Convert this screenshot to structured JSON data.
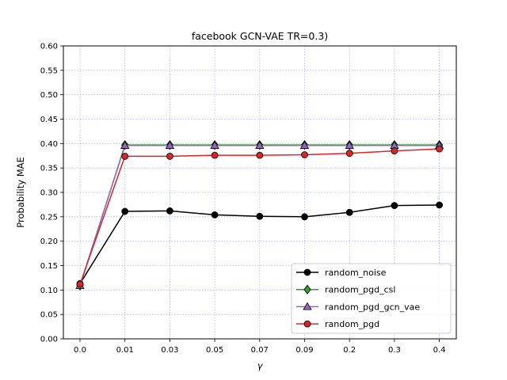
{
  "chart_data": {
    "type": "line",
    "title": "facebook GCN-VAE TR=0.3)",
    "xlabel": "γ",
    "ylabel": "Probability MAE",
    "categories": [
      "0.0",
      "0.01",
      "0.03",
      "0.05",
      "0.07",
      "0.09",
      "0.2",
      "0.3",
      "0.4"
    ],
    "ylim": [
      0,
      0.6
    ],
    "yticks": [
      "0.00",
      "0.05",
      "0.10",
      "0.15",
      "0.20",
      "0.25",
      "0.30",
      "0.35",
      "0.40",
      "0.45",
      "0.50",
      "0.55",
      "0.60"
    ],
    "grid": true,
    "legend_position": "lower-right",
    "series": [
      {
        "name": "random_noise",
        "color": "#000000",
        "marker": "circle",
        "values": [
          0.113,
          0.261,
          0.262,
          0.254,
          0.251,
          0.25,
          0.259,
          0.273,
          0.274
        ]
      },
      {
        "name": "random_pgd_csl",
        "color": "#2ca02c",
        "marker": "diamond",
        "values": [
          0.109,
          0.397,
          0.397,
          0.397,
          0.397,
          0.397,
          0.397,
          0.397,
          0.397
        ]
      },
      {
        "name": "random_pgd_gcn_vae",
        "color": "#9467bd",
        "marker": "triangle",
        "values": [
          0.109,
          0.396,
          0.396,
          0.396,
          0.396,
          0.396,
          0.396,
          0.396,
          0.396
        ]
      },
      {
        "name": "random_pgd",
        "color": "#d62728",
        "marker": "circle",
        "values": [
          0.112,
          0.374,
          0.374,
          0.376,
          0.376,
          0.377,
          0.38,
          0.385,
          0.389
        ]
      }
    ]
  }
}
